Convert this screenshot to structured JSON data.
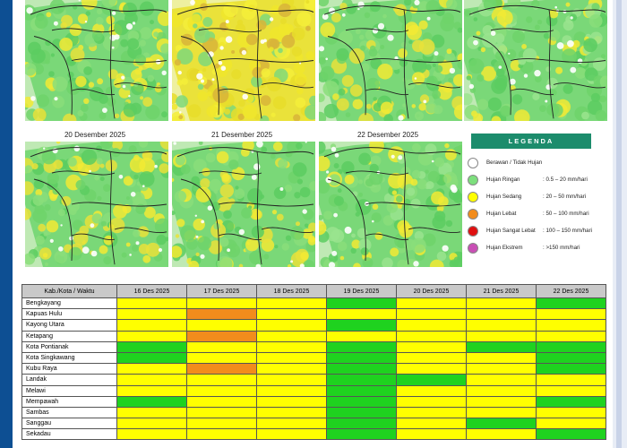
{
  "maps": {
    "row1": [
      {
        "date": "",
        "tone": "mixed"
      },
      {
        "date": "",
        "tone": "yellow"
      },
      {
        "date": "",
        "tone": "mixed"
      },
      {
        "date": "",
        "tone": "green"
      }
    ],
    "row2": [
      {
        "date": "20 Desember 2025",
        "tone": "mixed"
      },
      {
        "date": "21 Desember 2025",
        "tone": "mixed"
      },
      {
        "date": "22 Desember 2025",
        "tone": "green"
      }
    ]
  },
  "legend": {
    "title": "LEGENDA",
    "items": [
      {
        "label": "Berawan / Tidak Hujan",
        "range": "",
        "color": "#ffffff"
      },
      {
        "label": "Hujan Ringan",
        "range": ": 0.5 – 20 mm/hari",
        "color": "#7ddf7d"
      },
      {
        "label": "Hujan Sedang",
        "range": ": 20 – 50 mm/hari",
        "color": "#ffff00"
      },
      {
        "label": "Hujan Lebat",
        "range": ": 50 – 100 mm/hari",
        "color": "#f28c1c"
      },
      {
        "label": "Hujan Sangat Lebat",
        "range": ": 100 – 150 mm/hari",
        "color": "#e01010"
      },
      {
        "label": "Hujan Ekstrem",
        "range": ": >150 mm/hari",
        "color": "#c94fb5"
      }
    ]
  },
  "table": {
    "headers": [
      "Kab./Kota / Waktu",
      "16 Des 2025",
      "17 Des 2025",
      "18 Des 2025",
      "19 Des 2025",
      "20 Des 2025",
      "21 Des 2025",
      "22 Des 2025"
    ],
    "rows": [
      {
        "name": "Bengkayang",
        "cells": [
          "y",
          "y",
          "y",
          "g",
          "y",
          "y",
          "g"
        ]
      },
      {
        "name": "Kapuas Hulu",
        "cells": [
          "y",
          "o",
          "y",
          "y",
          "y",
          "y",
          "y"
        ]
      },
      {
        "name": "Kayong Utara",
        "cells": [
          "y",
          "y",
          "y",
          "g",
          "y",
          "y",
          "y"
        ]
      },
      {
        "name": "Ketapang",
        "cells": [
          "y",
          "o",
          "y",
          "y",
          "y",
          "y",
          "y"
        ]
      },
      {
        "name": "Kota Pontianak",
        "cells": [
          "g",
          "y",
          "y",
          "g",
          "y",
          "g",
          "g"
        ]
      },
      {
        "name": "Kota Singkawang",
        "cells": [
          "g",
          "y",
          "y",
          "g",
          "y",
          "y",
          "g"
        ]
      },
      {
        "name": "Kubu Raya",
        "cells": [
          "y",
          "o",
          "y",
          "g",
          "y",
          "y",
          "g"
        ]
      },
      {
        "name": "Landak",
        "cells": [
          "y",
          "y",
          "y",
          "g",
          "g",
          "y",
          "y"
        ]
      },
      {
        "name": "Melawi",
        "cells": [
          "y",
          "y",
          "y",
          "g",
          "y",
          "y",
          "y"
        ]
      },
      {
        "name": "Mempawah",
        "cells": [
          "g",
          "y",
          "y",
          "g",
          "y",
          "y",
          "g"
        ]
      },
      {
        "name": "Sambas",
        "cells": [
          "y",
          "y",
          "y",
          "g",
          "y",
          "y",
          "y"
        ]
      },
      {
        "name": "Sanggau",
        "cells": [
          "y",
          "y",
          "y",
          "g",
          "y",
          "g",
          "y"
        ]
      },
      {
        "name": "Sekadau",
        "cells": [
          "y",
          "y",
          "y",
          "g",
          "y",
          "y",
          "g"
        ]
      }
    ]
  }
}
